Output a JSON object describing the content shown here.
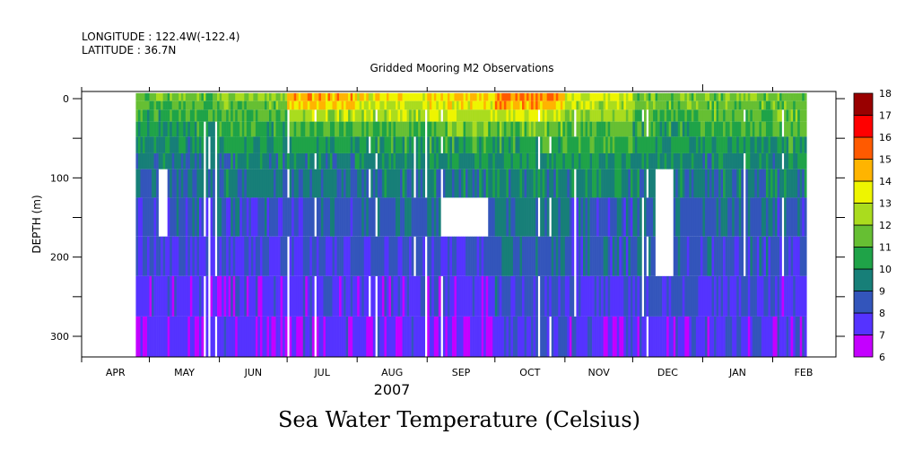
{
  "header": {
    "longitude": "LONGITUDE : 122.4W(-122.4)",
    "latitude": "LATITUDE : 36.7N"
  },
  "chart_data": {
    "type": "heatmap",
    "title": "Gridded Mooring M2 Observations",
    "xlabel": "2007",
    "ylabel": "DEPTH (m)",
    "colorbar_label": "Sea Water Temperature (Celsius)",
    "x_range_days_since_apr1_2007": [
      0,
      334
    ],
    "data_day_range": [
      24,
      321
    ],
    "month_labels": [
      "APR",
      "MAY",
      "JUN",
      "JUL",
      "AUG",
      "SEP",
      "OCT",
      "NOV",
      "DEC",
      "JAN",
      "FEB"
    ],
    "month_start_days": [
      0,
      30,
      61,
      91,
      122,
      153,
      183,
      214,
      244,
      275,
      306,
      335
    ],
    "yticks": [
      "0",
      "100",
      "200",
      "300"
    ],
    "ytick_values": [
      0,
      100,
      200,
      300
    ],
    "ylim": [
      326,
      -7
    ],
    "depth_bin_edges": [
      -7,
      3,
      14,
      29,
      48,
      69,
      89,
      125,
      174,
      224,
      275,
      326
    ],
    "monthly_mean_temp_by_depth_bin": {
      "months": [
        "MAY",
        "JUN",
        "JUL",
        "AUG",
        "SEP",
        "OCT",
        "NOV",
        "DEC",
        "JAN",
        "FEB"
      ],
      "rows": [
        [
          11.5,
          12.0,
          14.5,
          13.5,
          14.0,
          15.0,
          13.0,
          11.5,
          11.5,
          11.5
        ],
        [
          11.0,
          11.5,
          14.0,
          13.0,
          13.5,
          14.5,
          12.5,
          11.5,
          11.5,
          11.5
        ],
        [
          10.7,
          11.0,
          12.5,
          12.5,
          12.8,
          13.0,
          12.0,
          11.0,
          11.3,
          11.5
        ],
        [
          10.3,
          10.5,
          11.0,
          11.0,
          11.5,
          11.5,
          11.2,
          10.5,
          10.8,
          11.0
        ],
        [
          9.7,
          10.0,
          10.3,
          10.5,
          10.5,
          10.5,
          10.8,
          10.0,
          10.0,
          10.3
        ],
        [
          9.3,
          9.5,
          9.5,
          9.8,
          10.0,
          10.0,
          10.0,
          9.7,
          9.6,
          9.5
        ],
        [
          9.0,
          9.3,
          9.2,
          9.3,
          9.5,
          9.7,
          9.5,
          9.4,
          9.3,
          9.3
        ],
        [
          8.4,
          8.5,
          8.5,
          8.8,
          8.6,
          9.2,
          8.6,
          8.8,
          9.0,
          8.5
        ],
        [
          7.8,
          8.2,
          8.2,
          8.2,
          8.1,
          8.8,
          8.5,
          8.5,
          8.5,
          8.3
        ],
        [
          7.4,
          7.6,
          7.6,
          7.6,
          7.5,
          8.3,
          7.7,
          8.2,
          8.1,
          7.7
        ],
        [
          7.2,
          7.3,
          7.3,
          7.3,
          7.0,
          8.2,
          7.3,
          7.6,
          7.6,
          7.5
        ]
      ]
    },
    "missing_blocks": [
      {
        "days": [
          34,
          37
        ],
        "rows": [
          6,
          7
        ]
      },
      {
        "days": [
          159,
          179
        ],
        "rows": [
          7,
          7
        ]
      },
      {
        "days": [
          254,
          261
        ],
        "rows": [
          6,
          8
        ]
      }
    ],
    "colorbar": {
      "levels": [
        "6",
        "7",
        "8",
        "9",
        "10",
        "11",
        "12",
        "13",
        "14",
        "15",
        "16",
        "17",
        "18"
      ],
      "colors": [
        "#c400ff",
        "#5533ff",
        "#3355bb",
        "#177f78",
        "#1fa348",
        "#66bf33",
        "#aadc1e",
        "#eef500",
        "#ffb400",
        "#ff5a00",
        "#ff0000",
        "#990000"
      ]
    }
  }
}
